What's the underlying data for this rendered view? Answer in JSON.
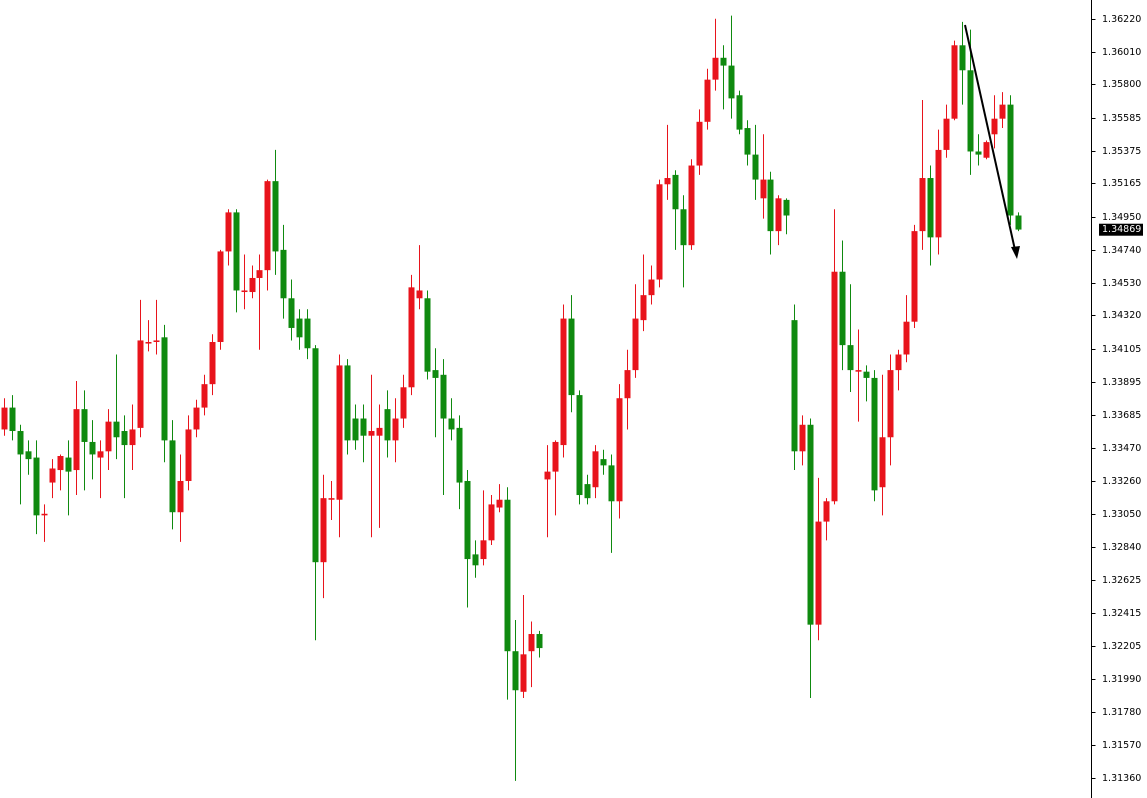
{
  "chart_data": {
    "type": "candlestick",
    "open": [
      1.3359,
      1.3373,
      1.3358,
      1.3345,
      1.3341,
      1.3304,
      1.3325,
      1.3333,
      1.3341,
      1.3333,
      1.3372,
      1.3351,
      1.3341,
      1.3345,
      1.3364,
      1.3358,
      1.3349,
      1.336,
      1.3414,
      1.3415,
      1.3418,
      1.3352,
      1.3306,
      1.3326,
      1.3359,
      1.3373,
      1.3388,
      1.3415,
      1.3473,
      1.3498,
      1.3447,
      1.3447,
      1.3456,
      1.3461,
      1.3518,
      1.3474,
      1.3443,
      1.343,
      1.343,
      1.3411,
      1.3274,
      1.3314,
      1.3314,
      1.34,
      1.3366,
      1.3366,
      1.3355,
      1.3355,
      1.3372,
      1.3352,
      1.3366,
      1.3386,
      1.3443,
      1.3443,
      1.3397,
      1.3394,
      1.3366,
      1.336,
      1.3326,
      1.3279,
      1.3276,
      1.3288,
      1.3309,
      1.3314,
      1.3217,
      1.3191,
      1.3217,
      1.3228,
      1.3327,
      1.3332,
      1.3349,
      1.343,
      1.3381,
      1.3324,
      1.3322,
      1.334,
      1.3336,
      1.3313,
      1.3379,
      1.3397,
      1.3429,
      1.3445,
      1.3455,
      1.3516,
      1.3522,
      1.35,
      1.3477,
      1.3528,
      1.3556,
      1.3583,
      1.3597,
      1.3592,
      1.3573,
      1.3552,
      1.3535,
      1.3507,
      1.3519,
      1.3486,
      1.3506,
      1.3429,
      1.3345,
      1.3362,
      1.3234,
      1.33,
      1.3313,
      1.346,
      1.3413,
      1.3396,
      1.3396,
      1.3392,
      1.3322,
      1.3354,
      1.3397,
      1.3407,
      1.3428,
      1.3486,
      1.352,
      1.3482,
      1.3538,
      1.3558,
      1.3605,
      1.3589,
      1.3537,
      1.3533,
      1.3548,
      1.3558,
      1.3567,
      1.3496
    ],
    "high": [
      1.3379,
      1.3381,
      1.3362,
      1.3352,
      1.3352,
      1.3311,
      1.334,
      1.3343,
      1.3352,
      1.339,
      1.3384,
      1.3365,
      1.3352,
      1.3372,
      1.3407,
      1.3368,
      1.3375,
      1.3442,
      1.3429,
      1.3442,
      1.3426,
      1.3365,
      1.3343,
      1.3368,
      1.3378,
      1.3394,
      1.342,
      1.3474,
      1.35,
      1.35,
      1.3471,
      1.3464,
      1.3471,
      1.3519,
      1.3538,
      1.349,
      1.3455,
      1.3436,
      1.3436,
      1.3413,
      1.333,
      1.3326,
      1.3407,
      1.3404,
      1.3375,
      1.3375,
      1.3394,
      1.3375,
      1.3384,
      1.3379,
      1.3394,
      1.3458,
      1.3477,
      1.3448,
      1.3411,
      1.3404,
      1.3379,
      1.3368,
      1.3333,
      1.3288,
      1.332,
      1.3317,
      1.3324,
      1.3322,
      1.3237,
      1.3253,
      1.3236,
      1.323,
      1.3349,
      1.3352,
      1.3439,
      1.3445,
      1.3384,
      1.333,
      1.3349,
      1.3346,
      1.3343,
      1.3388,
      1.341,
      1.3452,
      1.3471,
      1.3464,
      1.3519,
      1.3554,
      1.3525,
      1.3509,
      1.3532,
      1.3564,
      1.359,
      1.3622,
      1.3605,
      1.3624,
      1.3576,
      1.3557,
      1.3554,
      1.3548,
      1.3524,
      1.3509,
      1.3507,
      1.3439,
      1.3368,
      1.3366,
      1.3328,
      1.3315,
      1.35,
      1.348,
      1.3452,
      1.3423,
      1.34,
      1.3397,
      1.3394,
      1.3407,
      1.341,
      1.3445,
      1.349,
      1.357,
      1.3528,
      1.3551,
      1.3567,
      1.3608,
      1.362,
      1.3615,
      1.3548,
      1.3544,
      1.3573,
      1.3575,
      1.3573,
      1.3498
    ],
    "low": [
      1.3355,
      1.3352,
      1.3311,
      1.333,
      1.3292,
      1.3287,
      1.3315,
      1.332,
      1.3304,
      1.3317,
      1.332,
      1.3327,
      1.3315,
      1.3333,
      1.334,
      1.3315,
      1.3333,
      1.3354,
      1.3409,
      1.3407,
      1.3338,
      1.3295,
      1.3287,
      1.332,
      1.3354,
      1.3368,
      1.3381,
      1.341,
      1.3464,
      1.3434,
      1.3436,
      1.3443,
      1.341,
      1.3448,
      1.3458,
      1.343,
      1.3416,
      1.341,
      1.3404,
      1.3224,
      1.3251,
      1.3301,
      1.329,
      1.3343,
      1.3346,
      1.3338,
      1.329,
      1.3296,
      1.3341,
      1.3338,
      1.336,
      1.3381,
      1.3436,
      1.3391,
      1.3354,
      1.3317,
      1.3352,
      1.3308,
      1.3245,
      1.3264,
      1.3272,
      1.3285,
      1.3306,
      1.3186,
      1.3134,
      1.3187,
      1.3194,
      1.3213,
      1.329,
      1.3304,
      1.3341,
      1.337,
      1.3311,
      1.3311,
      1.3315,
      1.333,
      1.328,
      1.3302,
      1.3359,
      1.3392,
      1.3422,
      1.3439,
      1.345,
      1.3506,
      1.3474,
      1.345,
      1.3474,
      1.3522,
      1.3551,
      1.3576,
      1.3564,
      1.3558,
      1.3548,
      1.3528,
      1.3506,
      1.3494,
      1.3471,
      1.3477,
      1.3484,
      1.3333,
      1.3336,
      1.3187,
      1.3224,
      1.3288,
      1.3311,
      1.3397,
      1.3383,
      1.3364,
      1.3377,
      1.3313,
      1.3304,
      1.3336,
      1.3384,
      1.3402,
      1.3424,
      1.3474,
      1.3464,
      1.3471,
      1.3533,
      1.3557,
      1.3567,
      1.3522,
      1.3528,
      1.3532,
      1.3539,
      1.3552,
      1.349,
      1.3486
    ],
    "close": [
      1.3373,
      1.3358,
      1.3343,
      1.334,
      1.3304,
      1.3305,
      1.3334,
      1.3342,
      1.3332,
      1.3372,
      1.3351,
      1.3343,
      1.3345,
      1.3364,
      1.3354,
      1.3349,
      1.3359,
      1.3416,
      1.3415,
      1.3416,
      1.3352,
      1.3306,
      1.3326,
      1.3359,
      1.3373,
      1.3388,
      1.3415,
      1.3473,
      1.3498,
      1.3448,
      1.3448,
      1.3456,
      1.3461,
      1.3518,
      1.3473,
      1.3443,
      1.3424,
      1.3418,
      1.3411,
      1.3274,
      1.3315,
      1.3315,
      1.34,
      1.3352,
      1.3352,
      1.3355,
      1.3358,
      1.336,
      1.3352,
      1.3366,
      1.3386,
      1.345,
      1.3448,
      1.3396,
      1.3392,
      1.3366,
      1.3359,
      1.3325,
      1.3276,
      1.3272,
      1.3288,
      1.3311,
      1.3314,
      1.3217,
      1.3192,
      1.3215,
      1.3228,
      1.3219,
      1.3332,
      1.3351,
      1.343,
      1.3381,
      1.3317,
      1.3315,
      1.3345,
      1.3336,
      1.3313,
      1.3379,
      1.3397,
      1.343,
      1.3445,
      1.3455,
      1.3516,
      1.352,
      1.35,
      1.3477,
      1.3528,
      1.3556,
      1.3583,
      1.3597,
      1.3592,
      1.3571,
      1.3551,
      1.3535,
      1.3519,
      1.3519,
      1.3486,
      1.3507,
      1.3496,
      1.3345,
      1.3362,
      1.3234,
      1.33,
      1.3313,
      1.346,
      1.3413,
      1.3397,
      1.3397,
      1.3392,
      1.332,
      1.3354,
      1.3397,
      1.3407,
      1.3428,
      1.3486,
      1.352,
      1.3482,
      1.3538,
      1.3558,
      1.3605,
      1.3589,
      1.3537,
      1.3535,
      1.3543,
      1.3558,
      1.3567,
      1.3496,
      1.3487
    ],
    "up_color": "#e8141c",
    "down_color": "#0f8a0f",
    "ylim": [
      1.3123,
      1.3634
    ],
    "yticks": [
      {
        "value": 1.3622,
        "label": "1.36220"
      },
      {
        "value": 1.3601,
        "label": "1.36010"
      },
      {
        "value": 1.358,
        "label": "1.35800"
      },
      {
        "value": 1.35585,
        "label": "1.35585"
      },
      {
        "value": 1.35375,
        "label": "1.35375"
      },
      {
        "value": 1.35165,
        "label": "1.35165"
      },
      {
        "value": 1.3495,
        "label": "1.34950"
      },
      {
        "value": 1.3474,
        "label": "1.34740"
      },
      {
        "value": 1.3453,
        "label": "1.34530"
      },
      {
        "value": 1.3432,
        "label": "1.34320"
      },
      {
        "value": 1.34105,
        "label": "1.34105"
      },
      {
        "value": 1.33895,
        "label": "1.33895"
      },
      {
        "value": 1.33685,
        "label": "1.33685"
      },
      {
        "value": 1.3347,
        "label": "1.33470"
      },
      {
        "value": 1.3326,
        "label": "1.33260"
      },
      {
        "value": 1.3305,
        "label": "1.33050"
      },
      {
        "value": 1.3284,
        "label": "1.32840"
      },
      {
        "value": 1.32625,
        "label": "1.32625"
      },
      {
        "value": 1.32415,
        "label": "1.32415"
      },
      {
        "value": 1.32205,
        "label": "1.32205"
      },
      {
        "value": 1.3199,
        "label": "1.31990"
      },
      {
        "value": 1.3178,
        "label": "1.31780"
      },
      {
        "value": 1.3157,
        "label": "1.31570"
      },
      {
        "value": 1.3136,
        "label": "1.31360"
      }
    ],
    "last_price": {
      "value": 1.34869,
      "label": "1.34869"
    },
    "grid": false
  }
}
